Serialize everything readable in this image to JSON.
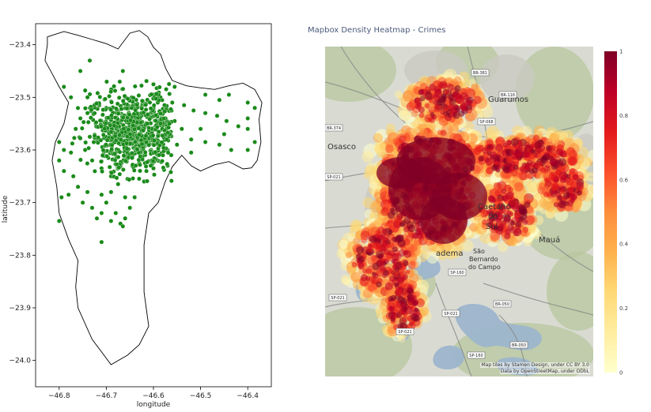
{
  "chart_data": [
    {
      "type": "scatter",
      "title": "",
      "xlabel": "longitude",
      "ylabel": "latitude",
      "xlim": [
        -46.85,
        -46.35
      ],
      "ylim": [
        -24.05,
        -23.36
      ],
      "xticks": [
        -46.8,
        -46.7,
        -46.6,
        -46.5,
        -46.4
      ],
      "yticks": [
        -23.4,
        -23.5,
        -23.6,
        -23.7,
        -23.8,
        -23.9,
        -24.0
      ],
      "xtick_labels": [
        "−46.8",
        "−46.7",
        "−46.6",
        "−46.5",
        "−46.4"
      ],
      "ytick_labels": [
        "−23.4",
        "−23.5",
        "−23.6",
        "−23.7",
        "−23.8",
        "−23.9",
        "−24.0"
      ],
      "grid": false,
      "marker_color": "#1a8a1a",
      "boundary": [
        [
          -46.825,
          -23.385
        ],
        [
          -46.79,
          -23.375
        ],
        [
          -46.76,
          -23.382
        ],
        [
          -46.73,
          -23.39
        ],
        [
          -46.7,
          -23.398
        ],
        [
          -46.675,
          -23.408
        ],
        [
          -46.65,
          -23.378
        ],
        [
          -46.63,
          -23.373
        ],
        [
          -46.612,
          -23.385
        ],
        [
          -46.6,
          -23.405
        ],
        [
          -46.585,
          -23.418
        ],
        [
          -46.574,
          -23.445
        ],
        [
          -46.56,
          -23.468
        ],
        [
          -46.53,
          -23.478
        ],
        [
          -46.5,
          -23.482
        ],
        [
          -46.47,
          -23.485
        ],
        [
          -46.44,
          -23.478
        ],
        [
          -46.41,
          -23.473
        ],
        [
          -46.385,
          -23.485
        ],
        [
          -46.37,
          -23.51
        ],
        [
          -46.376,
          -23.542
        ],
        [
          -46.372,
          -23.585
        ],
        [
          -46.38,
          -23.62
        ],
        [
          -46.392,
          -23.634
        ],
        [
          -46.41,
          -23.636
        ],
        [
          -46.44,
          -23.622
        ],
        [
          -46.47,
          -23.628
        ],
        [
          -46.5,
          -23.64
        ],
        [
          -46.52,
          -23.63
        ],
        [
          -46.54,
          -23.61
        ],
        [
          -46.56,
          -23.632
        ],
        [
          -46.575,
          -23.66
        ],
        [
          -46.59,
          -23.7
        ],
        [
          -46.61,
          -23.72
        ],
        [
          -46.62,
          -23.78
        ],
        [
          -46.62,
          -23.87
        ],
        [
          -46.61,
          -23.935
        ],
        [
          -46.63,
          -23.97
        ],
        [
          -46.655,
          -23.99
        ],
        [
          -46.69,
          -24.008
        ],
        [
          -46.73,
          -23.96
        ],
        [
          -46.76,
          -23.9
        ],
        [
          -46.765,
          -23.86
        ],
        [
          -46.76,
          -23.81
        ],
        [
          -46.78,
          -23.77
        ],
        [
          -46.8,
          -23.72
        ],
        [
          -46.805,
          -23.67
        ],
        [
          -46.815,
          -23.62
        ],
        [
          -46.808,
          -23.585
        ],
        [
          -46.79,
          -23.55
        ],
        [
          -46.78,
          -23.51
        ],
        [
          -46.8,
          -23.48
        ],
        [
          -46.815,
          -23.455
        ],
        [
          -46.83,
          -23.43
        ],
        [
          -46.825,
          -23.4
        ],
        [
          -46.825,
          -23.385
        ]
      ],
      "points": [
        [
          -46.735,
          -23.43
        ],
        [
          -46.755,
          -23.45
        ],
        [
          -46.79,
          -23.48
        ],
        [
          -46.775,
          -23.5
        ],
        [
          -46.74,
          -23.5
        ],
        [
          -46.665,
          -23.45
        ],
        [
          -46.49,
          -23.495
        ],
        [
          -46.44,
          -23.495
        ],
        [
          -46.4,
          -23.51
        ],
        [
          -46.385,
          -23.52
        ],
        [
          -46.4,
          -23.56
        ],
        [
          -46.42,
          -23.555
        ],
        [
          -46.45,
          -23.57
        ],
        [
          -46.465,
          -23.535
        ],
        [
          -46.49,
          -23.53
        ],
        [
          -46.515,
          -23.525
        ],
        [
          -46.535,
          -23.515
        ],
        [
          -46.56,
          -23.51
        ],
        [
          -46.54,
          -23.56
        ],
        [
          -46.52,
          -23.58
        ],
        [
          -46.5,
          -23.56
        ],
        [
          -46.49,
          -23.585
        ],
        [
          -46.46,
          -23.59
        ],
        [
          -46.435,
          -23.6
        ],
        [
          -46.4,
          -23.6
        ],
        [
          -46.385,
          -23.585
        ],
        [
          -46.52,
          -23.605
        ],
        [
          -46.55,
          -23.59
        ],
        [
          -46.555,
          -23.545
        ],
        [
          -46.58,
          -23.53
        ],
        [
          -46.575,
          -23.575
        ],
        [
          -46.57,
          -23.6
        ],
        [
          -46.57,
          -23.63
        ],
        [
          -46.59,
          -23.61
        ],
        [
          -46.59,
          -23.57
        ],
        [
          -46.585,
          -23.5
        ],
        [
          -46.555,
          -23.48
        ],
        [
          -46.46,
          -23.505
        ],
        [
          -46.445,
          -23.545
        ],
        [
          -46.4,
          -23.54
        ],
        [
          -46.8,
          -23.585
        ],
        [
          -46.79,
          -23.6
        ],
        [
          -46.775,
          -23.605
        ],
        [
          -46.8,
          -23.62
        ],
        [
          -46.79,
          -23.64
        ],
        [
          -46.77,
          -23.65
        ],
        [
          -46.76,
          -23.67
        ],
        [
          -46.74,
          -23.68
        ],
        [
          -46.75,
          -23.7
        ],
        [
          -46.73,
          -23.71
        ],
        [
          -46.72,
          -23.73
        ],
        [
          -46.71,
          -23.72
        ],
        [
          -46.69,
          -23.735
        ],
        [
          -46.68,
          -23.72
        ],
        [
          -46.67,
          -23.74
        ],
        [
          -46.66,
          -23.73
        ],
        [
          -46.65,
          -23.71
        ],
        [
          -46.64,
          -23.69
        ],
        [
          -46.66,
          -23.69
        ],
        [
          -46.69,
          -23.68
        ],
        [
          -46.7,
          -23.7
        ],
        [
          -46.71,
          -23.685
        ],
        [
          -46.78,
          -23.685
        ],
        [
          -46.795,
          -23.69
        ],
        [
          -46.8,
          -23.735
        ],
        [
          -46.71,
          -23.775
        ],
        [
          -46.665,
          -23.745
        ],
        [
          -46.62,
          -23.66
        ],
        [
          -46.615,
          -23.64
        ],
        [
          -46.6,
          -23.635
        ],
        [
          -46.765,
          -23.56
        ],
        [
          -46.755,
          -23.54
        ],
        [
          -46.74,
          -23.53
        ],
        [
          -46.73,
          -23.52
        ],
        [
          -46.715,
          -23.515
        ],
        [
          -46.7,
          -23.52
        ],
        [
          -46.735,
          -23.575
        ],
        [
          -46.745,
          -23.6
        ],
        [
          -46.73,
          -23.62
        ],
        [
          -46.71,
          -23.635
        ],
        [
          -46.69,
          -23.65
        ],
        [
          -46.675,
          -23.665
        ],
        [
          -46.655,
          -23.655
        ],
        [
          -46.645,
          -23.63
        ],
        [
          -46.63,
          -23.625
        ],
        [
          -46.62,
          -23.61
        ],
        [
          -46.605,
          -23.6
        ],
        [
          -46.615,
          -23.58
        ]
      ]
    },
    {
      "type": "heatmap",
      "title": "Mapbox Density Heatmap - Crimes",
      "colorscale": [
        "#ffffcc",
        "#ffeda0",
        "#fed976",
        "#feb24c",
        "#fd8d3c",
        "#fc4e2a",
        "#e31a1c",
        "#bd0026",
        "#800026"
      ],
      "colorbar_range": [
        0,
        1
      ],
      "colorbar_ticks": [
        0,
        0.2,
        0.4,
        0.6,
        0.8,
        1
      ],
      "colorbar_tick_labels": [
        "0",
        "0.2",
        "0.4",
        "0.6",
        "0.8",
        "1"
      ],
      "place_labels": [
        "Osasco",
        "Guarulhos",
        "Caetano",
        "do",
        "Sul",
        "Mauá",
        "São",
        "Bernardo",
        "do Campo",
        "adema"
      ],
      "road_labels": [
        "BR-381",
        "BR-116",
        "SP-068",
        "BR-374",
        "SP-021",
        "SP-160",
        "SP-021",
        "BR-050",
        "SP-021",
        "SP-021",
        "SP-160",
        "BR-050"
      ],
      "attribution": [
        "Map tiles by Stamen Design, under CC BY 3.0",
        "Data by OpenStreetMap, under ODbL"
      ]
    }
  ]
}
